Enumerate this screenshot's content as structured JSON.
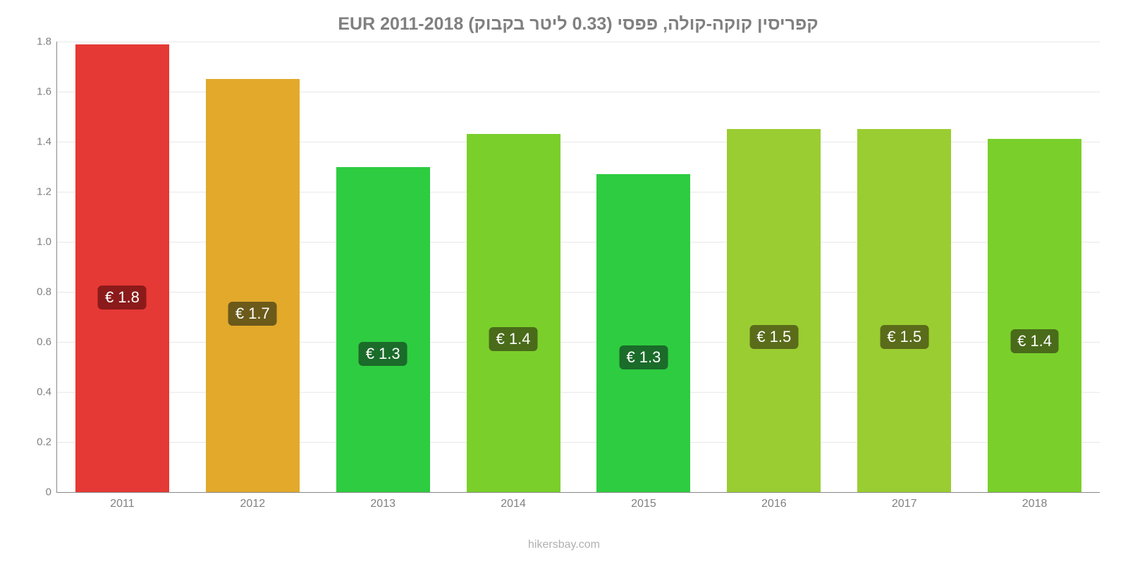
{
  "chart": {
    "type": "bar",
    "title": "קפריסין קוקה-קולה, פפסי (0.33 ליטר בקבוק) EUR 2011-2018",
    "title_fontsize": 25,
    "title_color": "#808080",
    "attribution": "hikersbay.com",
    "background_color": "#ffffff",
    "grid_color": "#e8e8e8",
    "axis_color": "#888888",
    "tick_label_color": "#808080",
    "tick_label_fontsize": 15,
    "ylim": [
      0,
      1.8
    ],
    "yticks": [
      0,
      0.2,
      0.4,
      0.6,
      0.8,
      1.0,
      1.2,
      1.4,
      1.6,
      1.8
    ],
    "ytick_labels": [
      "0",
      "0.2",
      "0.4",
      "0.6",
      "0.8",
      "1.0",
      "1.2",
      "1.4",
      "1.6",
      "1.8"
    ],
    "categories": [
      "2011",
      "2012",
      "2013",
      "2014",
      "2015",
      "2016",
      "2017",
      "2018"
    ],
    "values": [
      1.79,
      1.65,
      1.3,
      1.43,
      1.27,
      1.45,
      1.45,
      1.41
    ],
    "value_labels": [
      "€ 1.8",
      "€ 1.7",
      "€ 1.3",
      "€ 1.4",
      "€ 1.3",
      "€ 1.5",
      "€ 1.5",
      "€ 1.4"
    ],
    "bar_colors": [
      "#e53935",
      "#e2a92b",
      "#2ecc40",
      "#7acf2b",
      "#2ecc40",
      "#9acd32",
      "#9acd32",
      "#7acf2b"
    ],
    "label_bg_colors": [
      "#8b1a1a",
      "#6b5a1a",
      "#1b6b2a",
      "#4a6b1a",
      "#1b6b2a",
      "#5a6b1a",
      "#5a6b1a",
      "#4a6b1a"
    ],
    "label_y_position": 0.83,
    "bar_width_ratio": 0.72
  }
}
